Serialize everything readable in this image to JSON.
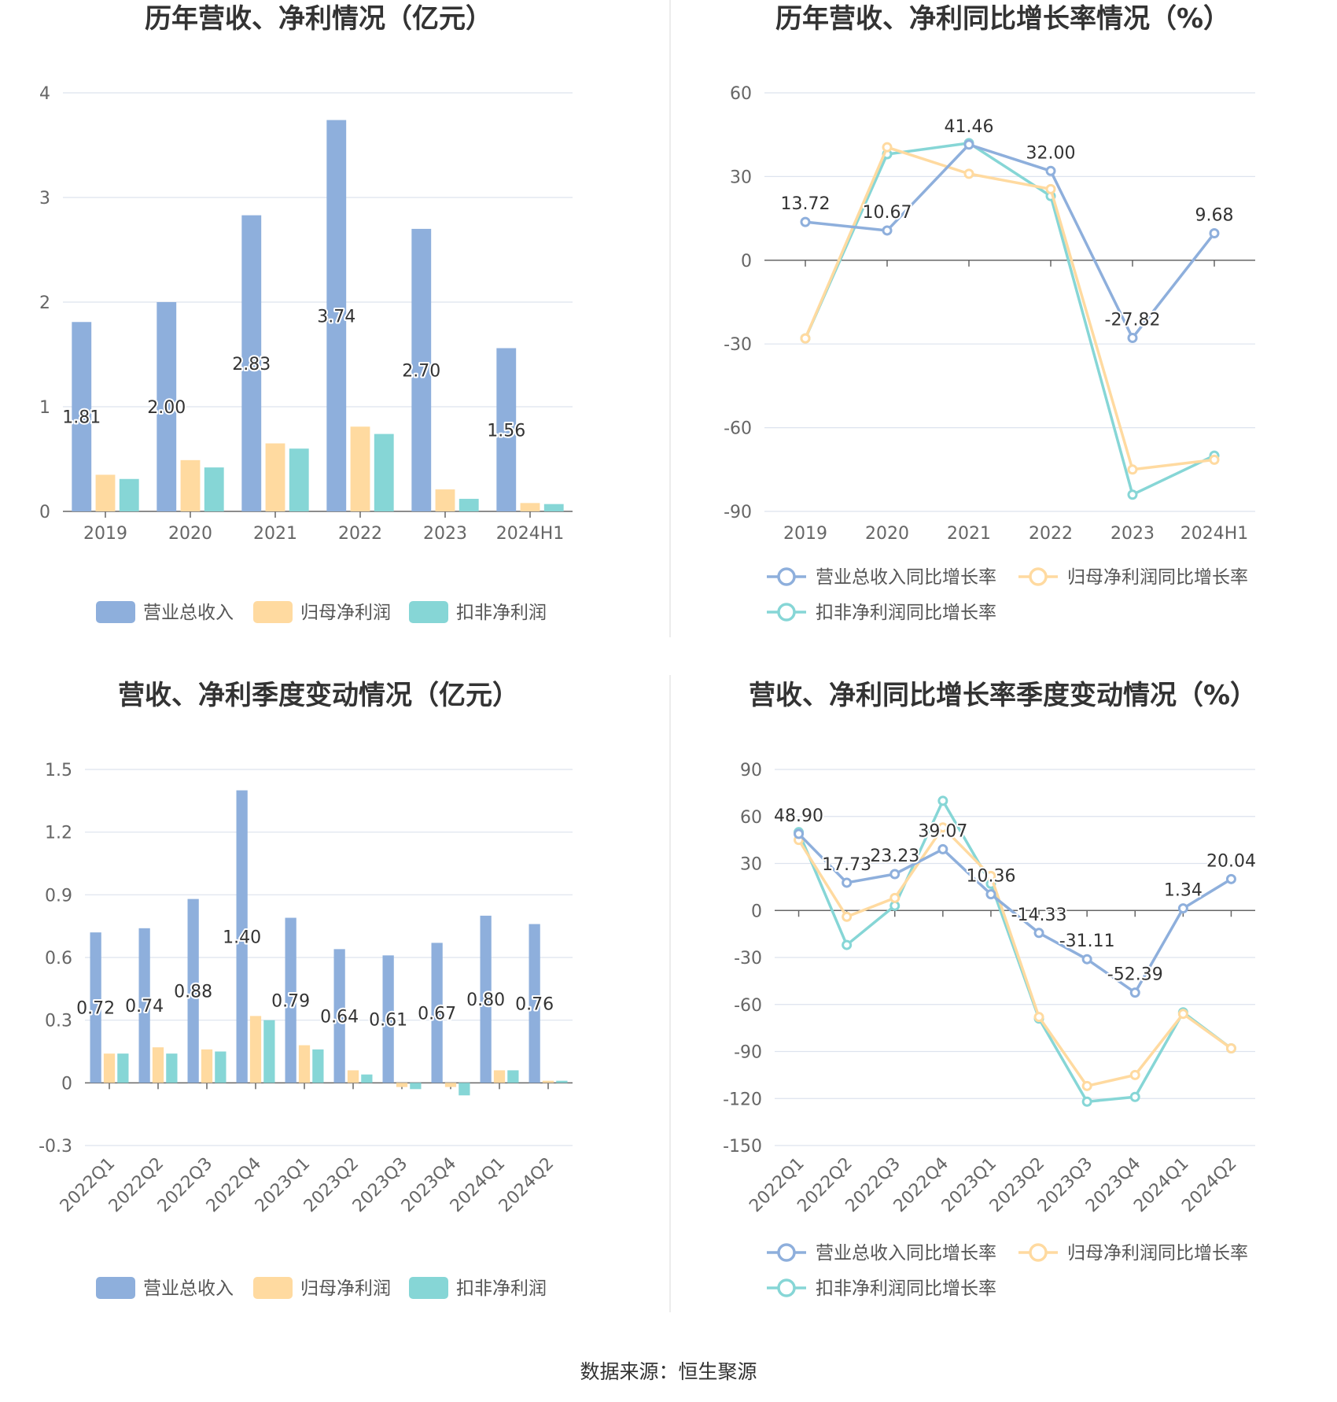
{
  "source": "数据来源：恒生聚源",
  "colors": {
    "revenue": "#8eafdc",
    "net": "#ffdaa0",
    "deducted": "#86d6d6",
    "grid": "#dde3ee",
    "axis": "#666666"
  },
  "chart_data": [
    {
      "id": "annual-amount",
      "type": "bar",
      "title": "历年营收、净利情况（亿元）",
      "categories": [
        "2019",
        "2020",
        "2021",
        "2022",
        "2023",
        "2024H1"
      ],
      "ylim": [
        0,
        4
      ],
      "yticks": [
        "0",
        "1",
        "2",
        "3",
        "4"
      ],
      "series": [
        {
          "name": "营业总收入",
          "values": [
            1.81,
            2.0,
            2.83,
            3.74,
            2.7,
            1.56
          ],
          "labels": [
            "1.81",
            "2.00",
            "2.83",
            "3.74",
            "2.70",
            "1.56"
          ]
        },
        {
          "name": "归母净利润",
          "values": [
            0.35,
            0.49,
            0.65,
            0.81,
            0.21,
            0.08
          ]
        },
        {
          "name": "扣非净利润",
          "values": [
            0.31,
            0.42,
            0.6,
            0.74,
            0.12,
            0.07
          ]
        }
      ]
    },
    {
      "id": "annual-growth",
      "type": "line",
      "title": "历年营收、净利同比增长率情况（%）",
      "categories": [
        "2019",
        "2020",
        "2021",
        "2022",
        "2023",
        "2024H1"
      ],
      "ylim": [
        -90,
        60
      ],
      "yticks": [
        "-90",
        "-60",
        "-30",
        "0",
        "30",
        "60"
      ],
      "series": [
        {
          "name": "营业总收入同比增长率",
          "values": [
            13.72,
            10.67,
            41.46,
            32.0,
            -27.82,
            9.68
          ],
          "labels": [
            "13.72",
            "10.67",
            "41.46",
            "32.00",
            "-27.82",
            "9.68"
          ]
        },
        {
          "name": "归母净利润同比增长率",
          "values": [
            -28,
            40.5,
            31,
            25.5,
            -75,
            -71.5
          ]
        },
        {
          "name": "扣非净利润同比增长率",
          "values": [
            -28,
            38,
            42,
            23,
            -84,
            -70
          ]
        }
      ]
    },
    {
      "id": "quarter-amount",
      "type": "bar",
      "title": "营收、净利季度变动情况（亿元）",
      "categories": [
        "2022Q1",
        "2022Q2",
        "2022Q3",
        "2022Q4",
        "2023Q1",
        "2023Q2",
        "2023Q3",
        "2023Q4",
        "2024Q1",
        "2024Q2"
      ],
      "ylim": [
        -0.3,
        1.5
      ],
      "yticks": [
        "-0.3",
        "0",
        "0.3",
        "0.6",
        "0.9",
        "1.2",
        "1.5"
      ],
      "series": [
        {
          "name": "营业总收入",
          "values": [
            0.72,
            0.74,
            0.88,
            1.4,
            0.79,
            0.64,
            0.61,
            0.67,
            0.8,
            0.76
          ],
          "labels": [
            "0.72",
            "0.74",
            "0.88",
            "1.40",
            "0.79",
            "0.64",
            "0.61",
            "0.67",
            "0.80",
            "0.76"
          ]
        },
        {
          "name": "归母净利润",
          "values": [
            0.14,
            0.17,
            0.16,
            0.32,
            0.18,
            0.06,
            -0.02,
            -0.02,
            0.06,
            0.01
          ]
        },
        {
          "name": "扣非净利润",
          "values": [
            0.14,
            0.14,
            0.15,
            0.3,
            0.16,
            0.04,
            -0.03,
            -0.06,
            0.06,
            0.01
          ]
        }
      ]
    },
    {
      "id": "quarter-growth",
      "type": "line",
      "title": "营收、净利同比增长率季度变动情况（%）",
      "categories": [
        "2022Q1",
        "2022Q2",
        "2022Q3",
        "2022Q4",
        "2023Q1",
        "2023Q2",
        "2023Q3",
        "2023Q4",
        "2024Q1",
        "2024Q2"
      ],
      "ylim": [
        -150,
        90
      ],
      "yticks": [
        "-150",
        "-120",
        "-90",
        "-60",
        "-30",
        "0",
        "30",
        "60",
        "90"
      ],
      "series": [
        {
          "name": "营业总收入同比增长率",
          "values": [
            48.9,
            17.73,
            23.23,
            39.07,
            10.36,
            -14.33,
            -31.11,
            -52.39,
            1.34,
            20.04
          ],
          "labels": [
            "48.90",
            "17.73",
            "23.23",
            "39.07",
            "10.36",
            "-14.33",
            "-31.11",
            "-52.39",
            "1.34",
            "20.04"
          ]
        },
        {
          "name": "归母净利润同比增长率",
          "values": [
            45,
            -4,
            8,
            53,
            22,
            -68,
            -112,
            -105,
            -66,
            -88
          ]
        },
        {
          "name": "扣非净利润同比增长率",
          "values": [
            50,
            -22,
            3,
            70,
            17,
            -69,
            -122,
            -119,
            -65,
            -88
          ]
        }
      ]
    }
  ]
}
